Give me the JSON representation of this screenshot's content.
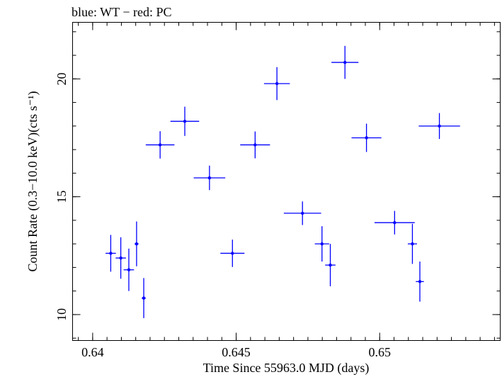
{
  "chart_data": {
    "type": "scatter",
    "title": "blue: WT − red: PC",
    "xlabel": "Time Since 55963.0 MJD (days)",
    "ylabel": "Count Rate (0.3−10.0 keV)(cts s⁻¹)",
    "xlim": [
      0.6393,
      0.6542
    ],
    "ylim": [
      8.9,
      22.4
    ],
    "xticks": [
      {
        "value": 0.64,
        "label": "0.64"
      },
      {
        "value": 0.645,
        "label": "0.645"
      },
      {
        "value": 0.65,
        "label": "0.65"
      }
    ],
    "xminor_step": 0.0005,
    "yticks": [
      {
        "value": 10,
        "label": "10"
      },
      {
        "value": 15,
        "label": "15"
      },
      {
        "value": 20,
        "label": "20"
      }
    ],
    "yminor_step": 1,
    "grid": false,
    "colors": {
      "WT": "#0000ff",
      "PC": "#ff0000",
      "axes": "#000000"
    },
    "series": [
      {
        "name": "WT",
        "color": "#0000ff",
        "points": [
          {
            "x": 0.64063,
            "xerr": 0.00018,
            "y": 12.6,
            "yerr": 0.78
          },
          {
            "x": 0.64098,
            "xerr": 0.00018,
            "y": 12.4,
            "yerr": 0.88
          },
          {
            "x": 0.64126,
            "xerr": 0.00018,
            "y": 11.9,
            "yerr": 0.9
          },
          {
            "x": 0.64153,
            "xerr": 7e-05,
            "y": 13.0,
            "yerr": 0.95
          },
          {
            "x": 0.64178,
            "xerr": 7e-05,
            "y": 10.7,
            "yerr": 0.85
          },
          {
            "x": 0.64235,
            "xerr": 0.0005,
            "y": 17.2,
            "yerr": 0.58
          },
          {
            "x": 0.64321,
            "xerr": 0.0005,
            "y": 18.2,
            "yerr": 0.62
          },
          {
            "x": 0.64407,
            "xerr": 0.00055,
            "y": 15.8,
            "yerr": 0.52
          },
          {
            "x": 0.64487,
            "xerr": 0.00042,
            "y": 12.6,
            "yerr": 0.58
          },
          {
            "x": 0.64566,
            "xerr": 0.00052,
            "y": 17.2,
            "yerr": 0.57
          },
          {
            "x": 0.64642,
            "xerr": 0.00045,
            "y": 19.8,
            "yerr": 0.7
          },
          {
            "x": 0.64731,
            "xerr": 0.00065,
            "y": 14.3,
            "yerr": 0.5
          },
          {
            "x": 0.64799,
            "xerr": 0.00025,
            "y": 13.0,
            "yerr": 0.75
          },
          {
            "x": 0.64828,
            "xerr": 0.00018,
            "y": 12.1,
            "yerr": 0.9
          },
          {
            "x": 0.64879,
            "xerr": 0.00047,
            "y": 20.7,
            "yerr": 0.7
          },
          {
            "x": 0.64954,
            "xerr": 0.00052,
            "y": 17.5,
            "yerr": 0.6
          },
          {
            "x": 0.65052,
            "xerr": 0.0007,
            "y": 13.9,
            "yerr": 0.5
          },
          {
            "x": 0.65114,
            "xerr": 0.00016,
            "y": 13.0,
            "yerr": 0.85
          },
          {
            "x": 0.6514,
            "xerr": 0.00014,
            "y": 11.4,
            "yerr": 0.85
          },
          {
            "x": 0.65208,
            "xerr": 0.00072,
            "y": 18.0,
            "yerr": 0.55
          }
        ]
      }
    ]
  }
}
